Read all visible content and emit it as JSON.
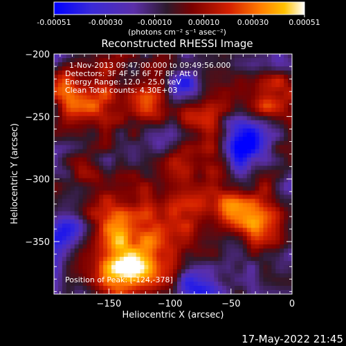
{
  "colorbar": {
    "tick_labels": [
      "-0.00051",
      "-0.00030",
      "-0.00010",
      "0.00010",
      "0.00030",
      "0.00051"
    ],
    "unit_label": "(photons cm⁻² s⁻¹ asec⁻²)"
  },
  "annotations": {
    "time_range": "1-Nov-2013 09:47:00.000 to 09:49:56.000",
    "detectors": "Detectors: 3F 4F 5F 6F 7F 8F, Att 0",
    "energy": "Energy Range: 12.0 - 25.0 keV",
    "method": "Clean    Total counts: 4.30E+03",
    "peak": "Position of Peak: [-124,-378]"
  },
  "timestamp": "17-May-2022 21:45",
  "chart_data": {
    "type": "heatmap",
    "title": "Reconstructed RHESSI Image",
    "xlabel": "Heliocentric X (arcsec)",
    "ylabel": "Heliocentric Y (arcsec)",
    "xlim": [
      -195,
      0
    ],
    "ylim": [
      -392,
      -200
    ],
    "x_ticks": [
      -150,
      -100,
      -50,
      0
    ],
    "y_ticks": [
      -200,
      -250,
      -300,
      -350
    ],
    "x_tick_labels": [
      "−150",
      "−100",
      "−50",
      "0"
    ],
    "y_tick_labels": [
      "−200",
      "−250",
      "−300",
      "−350"
    ],
    "value_range": [
      -0.00051,
      0.00051
    ],
    "colormap": [
      "#0000ff",
      "#5b2fa8",
      "#2d1a2d",
      "#7a0000",
      "#d42000",
      "#ff7a00",
      "#ffc200",
      "#ffffff"
    ]
  }
}
